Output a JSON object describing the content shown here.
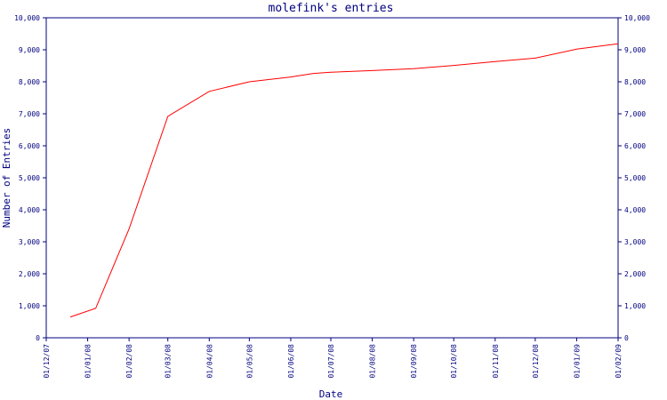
{
  "chart_data": {
    "type": "line",
    "title": "molefink's entries",
    "xlabel": "Date",
    "ylabel": "Number of Entries",
    "ylim": [
      0,
      10000
    ],
    "y_ticks": [
      "0",
      "1,000",
      "2,000",
      "3,000",
      "4,000",
      "5,000",
      "6,000",
      "7,000",
      "8,000",
      "9,000",
      "10,000"
    ],
    "x_ticks": [
      "01/12/07",
      "01/01/08",
      "01/02/08",
      "01/03/08",
      "01/04/08",
      "01/05/08",
      "01/06/08",
      "01/07/08",
      "01/08/08",
      "01/09/08",
      "01/10/08",
      "01/11/08",
      "01/12/08",
      "01/01/09",
      "01/02/09"
    ],
    "xlim": [
      "2007-12-01",
      "2009-02-01"
    ],
    "grid": false,
    "right_axis_mirror": true,
    "series": [
      {
        "color": "#ff0000",
        "points": [
          {
            "x": "2007-12-19",
            "y": 650
          },
          {
            "x": "2008-01-07",
            "y": 920
          },
          {
            "x": "2008-02-01",
            "y": 3400
          },
          {
            "x": "2008-03-01",
            "y": 6920
          },
          {
            "x": "2008-04-01",
            "y": 7700
          },
          {
            "x": "2008-05-01",
            "y": 8000
          },
          {
            "x": "2008-06-01",
            "y": 8150
          },
          {
            "x": "2008-06-18",
            "y": 8260
          },
          {
            "x": "2008-07-01",
            "y": 8300
          },
          {
            "x": "2008-08-01",
            "y": 8350
          },
          {
            "x": "2008-09-01",
            "y": 8410
          },
          {
            "x": "2008-10-01",
            "y": 8510
          },
          {
            "x": "2008-11-01",
            "y": 8630
          },
          {
            "x": "2008-12-01",
            "y": 8740
          },
          {
            "x": "2009-01-01",
            "y": 9020
          },
          {
            "x": "2009-02-01",
            "y": 9190
          }
        ]
      }
    ]
  }
}
